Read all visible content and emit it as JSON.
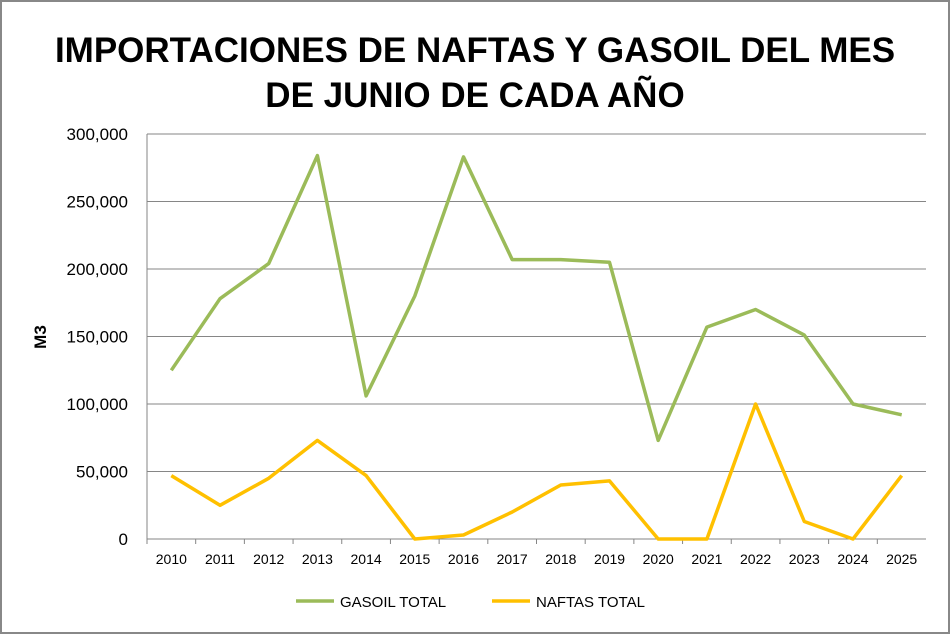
{
  "chart_data": {
    "type": "line",
    "title_line1": "IMPORTACIONES DE NAFTAS Y GASOIL DEL MES",
    "title_line2": "DE JUNIO DE CADA AÑO",
    "xlabel": "",
    "ylabel": "M3",
    "ylim": [
      0,
      300000
    ],
    "yticks": [
      0,
      50000,
      100000,
      150000,
      200000,
      250000,
      300000
    ],
    "ytick_labels": [
      "0",
      "50,000",
      "100,000",
      "150,000",
      "200,000",
      "250,000",
      "300,000"
    ],
    "grid": true,
    "legend_position": "bottom",
    "categories": [
      "2010",
      "2011",
      "2012",
      "2013",
      "2014",
      "2015",
      "2016",
      "2017",
      "2018",
      "2019",
      "2020",
      "2021",
      "2022",
      "2023",
      "2024",
      "2025"
    ],
    "series": [
      {
        "name": "GASOIL TOTAL",
        "color": "#9BBB59",
        "values": [
          125000,
          178000,
          204000,
          284000,
          106000,
          180000,
          283000,
          207000,
          207000,
          205000,
          73000,
          157000,
          170000,
          151000,
          100000,
          92000
        ]
      },
      {
        "name": "NAFTAS TOTAL",
        "color": "#FFC000",
        "values": [
          47000,
          25000,
          45000,
          73000,
          47000,
          0,
          3000,
          20000,
          40000,
          43000,
          0,
          0,
          100000,
          13000,
          0,
          47000
        ]
      }
    ]
  }
}
